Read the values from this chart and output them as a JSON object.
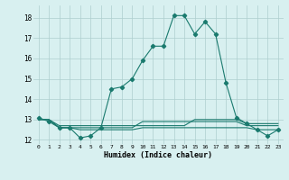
{
  "xlabel": "Humidex (Indice chaleur)",
  "x": [
    0,
    1,
    2,
    3,
    4,
    5,
    6,
    7,
    8,
    9,
    10,
    11,
    12,
    13,
    14,
    15,
    16,
    17,
    18,
    19,
    20,
    21,
    22,
    23
  ],
  "y_main": [
    13.1,
    12.9,
    12.6,
    12.6,
    12.1,
    12.2,
    12.6,
    14.5,
    14.6,
    15.0,
    15.9,
    16.6,
    16.6,
    18.1,
    18.1,
    17.2,
    17.8,
    17.2,
    14.8,
    13.1,
    12.8,
    12.5,
    12.2,
    12.5
  ],
  "y_flat1": [
    13.0,
    13.0,
    12.7,
    12.7,
    12.7,
    12.7,
    12.7,
    12.7,
    12.7,
    12.7,
    12.7,
    12.7,
    12.7,
    12.7,
    12.7,
    13.0,
    13.0,
    13.0,
    13.0,
    13.0,
    12.8,
    12.8,
    12.8,
    12.8
  ],
  "y_flat2": [
    13.0,
    13.0,
    12.6,
    12.6,
    12.6,
    12.6,
    12.6,
    12.6,
    12.6,
    12.6,
    12.9,
    12.9,
    12.9,
    12.9,
    12.9,
    12.9,
    12.9,
    12.9,
    12.9,
    12.9,
    12.7,
    12.7,
    12.7,
    12.7
  ],
  "y_flat3": [
    13.0,
    13.0,
    12.6,
    12.6,
    12.5,
    12.5,
    12.5,
    12.5,
    12.5,
    12.5,
    12.6,
    12.6,
    12.6,
    12.6,
    12.6,
    12.6,
    12.6,
    12.6,
    12.6,
    12.6,
    12.6,
    12.5,
    12.5,
    12.5
  ],
  "line_color": "#1a7a6e",
  "bg_color": "#d8f0f0",
  "grid_color": "#aecece",
  "ylim": [
    11.8,
    18.6
  ],
  "yticks": [
    12,
    13,
    14,
    15,
    16,
    17,
    18
  ],
  "xlim": [
    -0.5,
    23.5
  ]
}
